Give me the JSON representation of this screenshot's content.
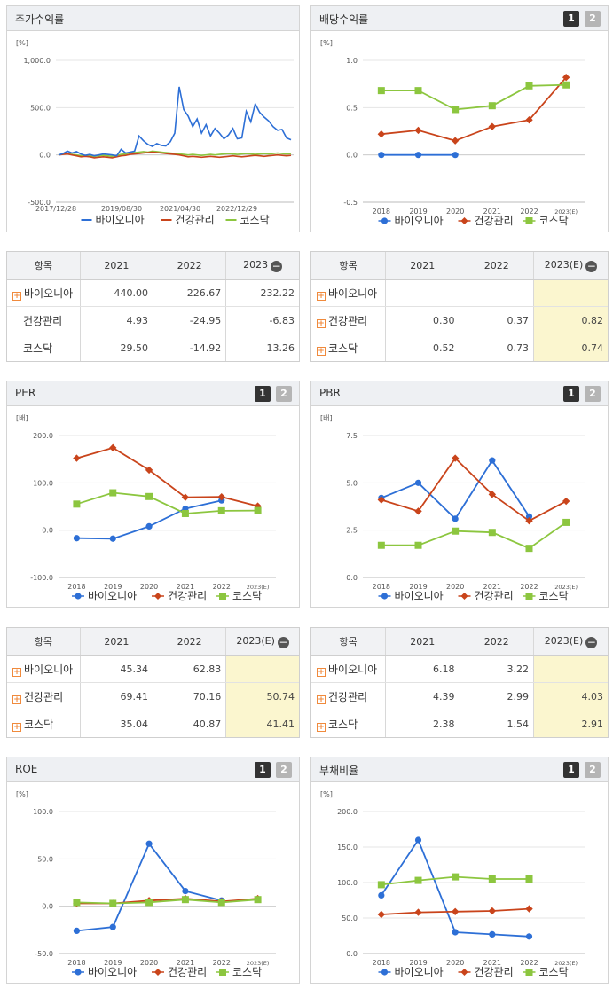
{
  "series_names": [
    "바이오니아",
    "건강관리",
    "코스닥"
  ],
  "colors": {
    "biounia": "#2d6fd6",
    "health": "#c9441b",
    "kosdaq": "#8cc63f"
  },
  "tabs": [
    "1",
    "2"
  ],
  "panels": {
    "stock_return": {
      "title": "주가수익률",
      "unit": "[%]"
    },
    "dividend": {
      "title": "배당수익률",
      "unit": "[%]"
    },
    "per": {
      "title": "PER",
      "unit": "[배]"
    },
    "pbr": {
      "title": "PBR",
      "unit": "[배]"
    },
    "roe": {
      "title": "ROE",
      "unit": "[%]"
    },
    "debt": {
      "title": "부채비율",
      "unit": "[%]"
    }
  },
  "tables": {
    "t1": {
      "headers": [
        "항목",
        "2021",
        "2022",
        "2023"
      ],
      "rows": [
        {
          "name": "바이오니아",
          "plus": true,
          "v": [
            "440.00",
            "226.67",
            "232.22"
          ]
        },
        {
          "name": "건강관리",
          "plus": false,
          "v": [
            "4.93",
            "-24.95",
            "-6.83"
          ]
        },
        {
          "name": "코스닥",
          "plus": false,
          "v": [
            "29.50",
            "-14.92",
            "13.26"
          ]
        }
      ]
    },
    "t2": {
      "headers": [
        "항목",
        "2021",
        "2022",
        "2023(E)"
      ],
      "rows": [
        {
          "name": "바이오니아",
          "plus": true,
          "v": [
            "",
            "",
            ""
          ]
        },
        {
          "name": "건강관리",
          "plus": true,
          "v": [
            "0.30",
            "0.37",
            "0.82"
          ]
        },
        {
          "name": "코스닥",
          "plus": true,
          "v": [
            "0.52",
            "0.73",
            "0.74"
          ]
        }
      ]
    },
    "t3": {
      "headers": [
        "항목",
        "2021",
        "2022",
        "2023(E)"
      ],
      "rows": [
        {
          "name": "바이오니아",
          "plus": true,
          "v": [
            "45.34",
            "62.83",
            ""
          ]
        },
        {
          "name": "건강관리",
          "plus": true,
          "v": [
            "69.41",
            "70.16",
            "50.74"
          ]
        },
        {
          "name": "코스닥",
          "plus": true,
          "v": [
            "35.04",
            "40.87",
            "41.41"
          ]
        }
      ]
    },
    "t4": {
      "headers": [
        "항목",
        "2021",
        "2022",
        "2023(E)"
      ],
      "rows": [
        {
          "name": "바이오니아",
          "plus": true,
          "v": [
            "6.18",
            "3.22",
            ""
          ]
        },
        {
          "name": "건강관리",
          "plus": true,
          "v": [
            "4.39",
            "2.99",
            "4.03"
          ]
        },
        {
          "name": "코스닥",
          "plus": true,
          "v": [
            "2.38",
            "1.54",
            "2.91"
          ]
        }
      ]
    }
  },
  "chart_data": [
    {
      "id": "stock_return",
      "type": "line",
      "title": "주가수익률",
      "ylabel": "[%]",
      "ylim": [
        -500,
        1000
      ],
      "yticks": [
        "1,000.0",
        "500.0",
        "0.0",
        "-500.0"
      ],
      "xticks": [
        "2017/12/28",
        "2019/08/30",
        "2021/04/30",
        "2022/12/29"
      ],
      "series": [
        {
          "name": "바이오니아",
          "values": [
            0,
            15,
            40,
            20,
            35,
            10,
            -5,
            5,
            -10,
            0,
            10,
            5,
            0,
            -10,
            60,
            20,
            30,
            40,
            200,
            150,
            110,
            90,
            120,
            100,
            95,
            140,
            230,
            720,
            480,
            410,
            300,
            380,
            230,
            320,
            200,
            280,
            230,
            170,
            210,
            280,
            170,
            180,
            460,
            350,
            540,
            450,
            400,
            360,
            300,
            260,
            270,
            180,
            160
          ]
        },
        {
          "name": "건강관리",
          "values": [
            0,
            5,
            10,
            0,
            -10,
            -20,
            -15,
            -20,
            -30,
            -25,
            -20,
            -25,
            -30,
            -20,
            -10,
            -5,
            5,
            10,
            15,
            20,
            25,
            30,
            25,
            20,
            15,
            10,
            5,
            0,
            -10,
            -20,
            -15,
            -20,
            -25,
            -20,
            -15,
            -20,
            -25,
            -20,
            -15,
            -10,
            -15,
            -20,
            -15,
            -10,
            -5,
            -10,
            -15,
            -10,
            -5,
            0,
            -5,
            -10,
            -5
          ]
        },
        {
          "name": "코스닥",
          "values": [
            0,
            10,
            15,
            5,
            0,
            -10,
            -5,
            -10,
            -15,
            -10,
            -5,
            -10,
            -15,
            -5,
            5,
            10,
            20,
            25,
            30,
            35,
            30,
            40,
            35,
            30,
            25,
            20,
            15,
            10,
            5,
            0,
            5,
            0,
            -5,
            0,
            5,
            0,
            5,
            10,
            15,
            10,
            5,
            10,
            15,
            10,
            5,
            10,
            15,
            10,
            15,
            20,
            15,
            10,
            15
          ]
        }
      ]
    },
    {
      "id": "dividend",
      "type": "line",
      "title": "배당수익률",
      "ylabel": "[%]",
      "ylim": [
        -0.5,
        1.0
      ],
      "yticks": [
        "1.0",
        "0.5",
        "0.0",
        "-0.5"
      ],
      "categories": [
        "2018",
        "2019",
        "2020",
        "2021",
        "2022",
        "2023(E)"
      ],
      "series": [
        {
          "name": "바이오니아",
          "values": [
            0,
            0,
            0,
            null,
            null,
            null
          ]
        },
        {
          "name": "건강관리",
          "values": [
            0.22,
            0.26,
            0.15,
            0.3,
            0.37,
            0.82
          ]
        },
        {
          "name": "코스닥",
          "values": [
            0.68,
            0.68,
            0.48,
            0.52,
            0.73,
            0.74
          ]
        }
      ]
    },
    {
      "id": "per",
      "type": "line",
      "title": "PER",
      "ylabel": "[배]",
      "ylim": [
        -100,
        200
      ],
      "yticks": [
        "200.0",
        "100.0",
        "0.0",
        "-100.0"
      ],
      "categories": [
        "2018",
        "2019",
        "2020",
        "2021",
        "2022",
        "2023(E)"
      ],
      "series": [
        {
          "name": "바이오니아",
          "values": [
            -17,
            -18,
            8,
            45.34,
            62.83,
            null
          ]
        },
        {
          "name": "건강관리",
          "values": [
            152,
            174,
            127,
            69.41,
            70.16,
            50.74
          ]
        },
        {
          "name": "코스닥",
          "values": [
            55,
            79,
            71,
            35.04,
            40.87,
            41.41
          ]
        }
      ]
    },
    {
      "id": "pbr",
      "type": "line",
      "title": "PBR",
      "ylabel": "[배]",
      "ylim": [
        0,
        7.5
      ],
      "yticks": [
        "7.5",
        "5.0",
        "2.5",
        "0.0"
      ],
      "categories": [
        "2018",
        "2019",
        "2020",
        "2021",
        "2022",
        "2023(E)"
      ],
      "series": [
        {
          "name": "바이오니아",
          "values": [
            4.2,
            5.0,
            3.1,
            6.18,
            3.22,
            null
          ]
        },
        {
          "name": "건강관리",
          "values": [
            4.1,
            3.5,
            6.3,
            4.39,
            2.99,
            4.03
          ]
        },
        {
          "name": "코스닥",
          "values": [
            1.7,
            1.7,
            2.45,
            2.38,
            1.54,
            2.91
          ]
        }
      ]
    },
    {
      "id": "roe",
      "type": "line",
      "title": "ROE",
      "ylabel": "[%]",
      "ylim": [
        -50,
        100
      ],
      "yticks": [
        "100.0",
        "50.0",
        "0.0",
        "-50.0"
      ],
      "categories": [
        "2018",
        "2019",
        "2020",
        "2021",
        "2022",
        "2023(E)"
      ],
      "series": [
        {
          "name": "바이오니아",
          "values": [
            -26,
            -22,
            66,
            16,
            6,
            null
          ]
        },
        {
          "name": "건강관리",
          "values": [
            3,
            3,
            6,
            8,
            5,
            8
          ]
        },
        {
          "name": "코스닥",
          "values": [
            4,
            3,
            4,
            7,
            4,
            7
          ]
        }
      ]
    },
    {
      "id": "debt",
      "type": "line",
      "title": "부채비율",
      "ylabel": "[%]",
      "ylim": [
        0,
        200
      ],
      "yticks": [
        "200.0",
        "150.0",
        "100.0",
        "50.0",
        "0.0"
      ],
      "categories": [
        "2018",
        "2019",
        "2020",
        "2021",
        "2022",
        "2023(E)"
      ],
      "series": [
        {
          "name": "바이오니아",
          "values": [
            82,
            160,
            30,
            27,
            24,
            null
          ]
        },
        {
          "name": "건강관리",
          "values": [
            55,
            58,
            59,
            60,
            63,
            null
          ]
        },
        {
          "name": "코스닥",
          "values": [
            97,
            103,
            108,
            105,
            105,
            null
          ]
        }
      ]
    }
  ]
}
